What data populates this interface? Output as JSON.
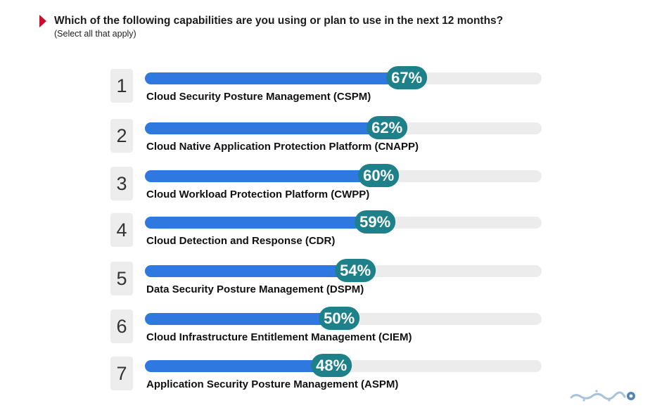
{
  "header": {
    "title": "Which of the following capabilities are you using or plan to use in the next 12 months?",
    "subtitle": "(Select all that apply)"
  },
  "chart_data": {
    "type": "bar",
    "orientation": "horizontal",
    "title": "Which of the following capabilities are you using or plan to use in the next 12 months?",
    "subtitle": "(Select all that apply)",
    "xlim": [
      0,
      100
    ],
    "grid": false,
    "legend": "none",
    "bars": [
      {
        "rank": "1",
        "category": "Cloud Security Posture Management (CSPM)",
        "value": 67,
        "value_label": "67%"
      },
      {
        "rank": "2",
        "category": "Cloud Native Application Protection Platform (CNAPP)",
        "value": 62,
        "value_label": "62%"
      },
      {
        "rank": "3",
        "category": "Cloud Workload Protection Platform (CWPP)",
        "value": 60,
        "value_label": "60%"
      },
      {
        "rank": "4",
        "category": "Cloud Detection and Response (CDR)",
        "value": 59,
        "value_label": "59%"
      },
      {
        "rank": "5",
        "category": "Data Security Posture Management (DSPM)",
        "value": 54,
        "value_label": "54%"
      },
      {
        "rank": "6",
        "category": "Cloud Infrastructure Entitlement Management (CIEM)",
        "value": 50,
        "value_label": "50%"
      },
      {
        "rank": "7",
        "category": "Application Security Posture Management (ASPM)",
        "value": 48,
        "value_label": "48%"
      }
    ]
  },
  "colors": {
    "bar_fill": "#2e78e0",
    "bar_track": "#ececec",
    "value_pill": "#1e8089",
    "rank_box": "#ededed",
    "title_marker": "#c8102e"
  },
  "watermark": {
    "icon": "watermark-logo-icon"
  }
}
